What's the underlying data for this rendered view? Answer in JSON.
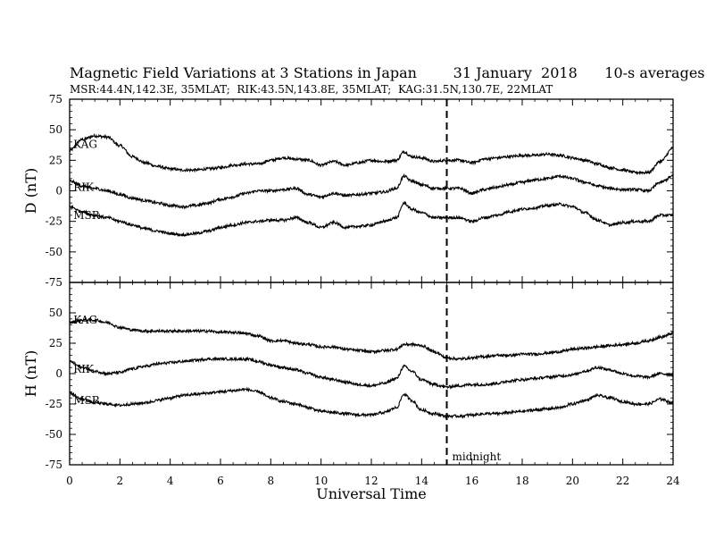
{
  "chart_data": {
    "type": "line",
    "title": "Magnetic Field Variations at 3 Stations in Japan        31 January  2018      10-s averages",
    "subtitle": "MSR:44.4N,142.3E, 35MLAT;  RIK:43.5N,143.8E, 35MLAT;  KAG:31.5N,130.7E, 22MLAT",
    "xlabel": "Universal Time",
    "xlim": [
      0,
      24
    ],
    "xticks": [
      0,
      2,
      4,
      6,
      8,
      10,
      12,
      14,
      16,
      18,
      20,
      22,
      24
    ],
    "marker": {
      "x": 15,
      "label": "midnight"
    },
    "panels": [
      {
        "ylabel": "D (nT)",
        "ylim": [
          -75,
          75
        ],
        "yticks": [
          75,
          50,
          25,
          0,
          -25,
          -50,
          -75
        ],
        "series": [
          {
            "name": "KAG",
            "x": [
              0,
              0.5,
              1,
              1.5,
              2,
              2.5,
              3,
              3.5,
              4,
              4.5,
              5,
              5.5,
              6,
              6.5,
              7,
              7.5,
              8,
              8.5,
              9,
              9.5,
              10,
              10.5,
              11,
              11.5,
              12,
              12.5,
              13,
              13.3,
              13.6,
              14,
              14.5,
              15,
              15.5,
              16,
              16.5,
              17,
              17.5,
              18,
              18.5,
              19,
              19.5,
              20,
              20.5,
              21,
              21.5,
              22,
              22.5,
              23,
              23.5,
              24
            ],
            "y": [
              33,
              42,
              45,
              44,
              37,
              28,
              23,
              20,
              18,
              17,
              17,
              18,
              19,
              21,
              22,
              22,
              25,
              27,
              26,
              25,
              21,
              24,
              21,
              23,
              25,
              24,
              25,
              32,
              28,
              27,
              24,
              25,
              25,
              23,
              26,
              27,
              28,
              29,
              29,
              30,
              29,
              27,
              25,
              22,
              19,
              17,
              15,
              15,
              24,
              35
            ]
          },
          {
            "name": "RIK",
            "x": [
              0,
              0.5,
              1,
              1.5,
              2,
              2.5,
              3,
              3.5,
              4,
              4.5,
              5,
              5.5,
              6,
              6.5,
              7,
              7.5,
              8,
              8.5,
              9,
              9.5,
              10,
              10.5,
              11,
              11.5,
              12,
              12.5,
              13,
              13.3,
              13.6,
              14,
              14.5,
              15,
              15.5,
              16,
              16.5,
              17,
              17.5,
              18,
              18.5,
              19,
              19.5,
              20,
              20.5,
              21,
              21.5,
              22,
              22.5,
              23,
              23.5,
              24
            ],
            "y": [
              8,
              4,
              2,
              0,
              -3,
              -6,
              -8,
              -10,
              -12,
              -13,
              -12,
              -10,
              -7,
              -5,
              -2,
              0,
              0,
              1,
              2,
              -3,
              -5,
              -2,
              -4,
              -3,
              -2,
              -1,
              2,
              12,
              8,
              5,
              2,
              2,
              2,
              -2,
              1,
              3,
              5,
              7,
              9,
              10,
              12,
              10,
              7,
              4,
              2,
              1,
              1,
              0,
              7,
              12
            ]
          },
          {
            "name": "MSR",
            "x": [
              0,
              0.5,
              1,
              1.5,
              2,
              2.5,
              3,
              3.5,
              4,
              4.5,
              5,
              5.5,
              6,
              6.5,
              7,
              7.5,
              8,
              8.5,
              9,
              9.5,
              10,
              10.5,
              11,
              11.5,
              12,
              12.5,
              13,
              13.3,
              13.6,
              14,
              14.5,
              15,
              15.5,
              16,
              16.5,
              17,
              17.5,
              18,
              18.5,
              19,
              19.5,
              20,
              20.5,
              21,
              21.5,
              22,
              22.5,
              23,
              23.5,
              24
            ],
            "y": [
              -13,
              -17,
              -20,
              -22,
              -25,
              -28,
              -31,
              -33,
              -35,
              -36,
              -35,
              -33,
              -30,
              -28,
              -26,
              -25,
              -24,
              -24,
              -22,
              -26,
              -30,
              -26,
              -30,
              -29,
              -28,
              -25,
              -22,
              -10,
              -15,
              -18,
              -22,
              -22,
              -22,
              -25,
              -22,
              -20,
              -17,
              -15,
              -14,
              -12,
              -11,
              -13,
              -18,
              -24,
              -28,
              -26,
              -25,
              -25,
              -20,
              -20
            ]
          }
        ]
      },
      {
        "ylabel": "H (nT)",
        "ylim": [
          -75,
          75
        ],
        "yticks": [
          75,
          50,
          25,
          0,
          -25,
          -50,
          -75
        ],
        "series": [
          {
            "name": "KAG",
            "x": [
              0,
              0.5,
              1,
              1.5,
              2,
              2.5,
              3,
              3.5,
              4,
              4.5,
              5,
              5.5,
              6,
              6.5,
              7,
              7.5,
              8,
              8.5,
              9,
              9.5,
              10,
              10.5,
              11,
              11.5,
              12,
              12.5,
              13,
              13.3,
              13.6,
              14,
              14.5,
              15,
              15.5,
              16,
              16.5,
              17,
              17.5,
              18,
              18.5,
              19,
              19.5,
              20,
              20.5,
              21,
              21.5,
              22,
              22.5,
              23,
              23.5,
              24
            ],
            "y": [
              42,
              44,
              44,
              42,
              38,
              36,
              35,
              35,
              35,
              35,
              35,
              35,
              34,
              34,
              33,
              31,
              27,
              27,
              25,
              24,
              22,
              22,
              20,
              19,
              18,
              19,
              20,
              24,
              24,
              23,
              18,
              13,
              12,
              13,
              14,
              15,
              15,
              16,
              16,
              17,
              18,
              20,
              21,
              22,
              23,
              24,
              25,
              27,
              30,
              33
            ]
          },
          {
            "name": "RIK",
            "x": [
              0,
              0.5,
              1,
              1.5,
              2,
              2.5,
              3,
              3.5,
              4,
              4.5,
              5,
              5.5,
              6,
              6.5,
              7,
              7.5,
              8,
              8.5,
              9,
              9.5,
              10,
              10.5,
              11,
              11.5,
              12,
              12.5,
              13,
              13.3,
              13.6,
              14,
              14.5,
              15,
              15.5,
              16,
              16.5,
              17,
              17.5,
              18,
              18.5,
              19,
              19.5,
              20,
              20.5,
              21,
              21.5,
              22,
              22.5,
              23,
              23.5,
              24
            ],
            "y": [
              10,
              5,
              2,
              0,
              1,
              4,
              6,
              8,
              9,
              10,
              11,
              12,
              12,
              12,
              12,
              10,
              7,
              5,
              3,
              0,
              -3,
              -5,
              -7,
              -9,
              -10,
              -8,
              -4,
              6,
              2,
              -5,
              -9,
              -11,
              -10,
              -9,
              -9,
              -8,
              -6,
              -5,
              -4,
              -3,
              -2,
              -1,
              2,
              5,
              3,
              0,
              -2,
              -3,
              0,
              -1
            ]
          },
          {
            "name": "MSR",
            "x": [
              0,
              0.5,
              1,
              1.5,
              2,
              2.5,
              3,
              3.5,
              4,
              4.5,
              5,
              5.5,
              6,
              6.5,
              7,
              7.5,
              8,
              8.5,
              9,
              9.5,
              10,
              10.5,
              11,
              11.5,
              12,
              12.5,
              13,
              13.3,
              13.6,
              14,
              14.5,
              15,
              15.5,
              16,
              16.5,
              17,
              17.5,
              18,
              18.5,
              19,
              19.5,
              20,
              20.5,
              21,
              21.5,
              22,
              22.5,
              23,
              23.5,
              24
            ],
            "y": [
              -16,
              -21,
              -24,
              -25,
              -26,
              -25,
              -24,
              -22,
              -20,
              -18,
              -17,
              -16,
              -15,
              -14,
              -13,
              -15,
              -20,
              -23,
              -25,
              -28,
              -31,
              -32,
              -33,
              -34,
              -34,
              -32,
              -28,
              -17,
              -22,
              -30,
              -33,
              -35,
              -35,
              -34,
              -33,
              -33,
              -32,
              -31,
              -30,
              -29,
              -28,
              -25,
              -22,
              -18,
              -20,
              -23,
              -25,
              -25,
              -21,
              -24
            ]
          }
        ]
      }
    ]
  }
}
